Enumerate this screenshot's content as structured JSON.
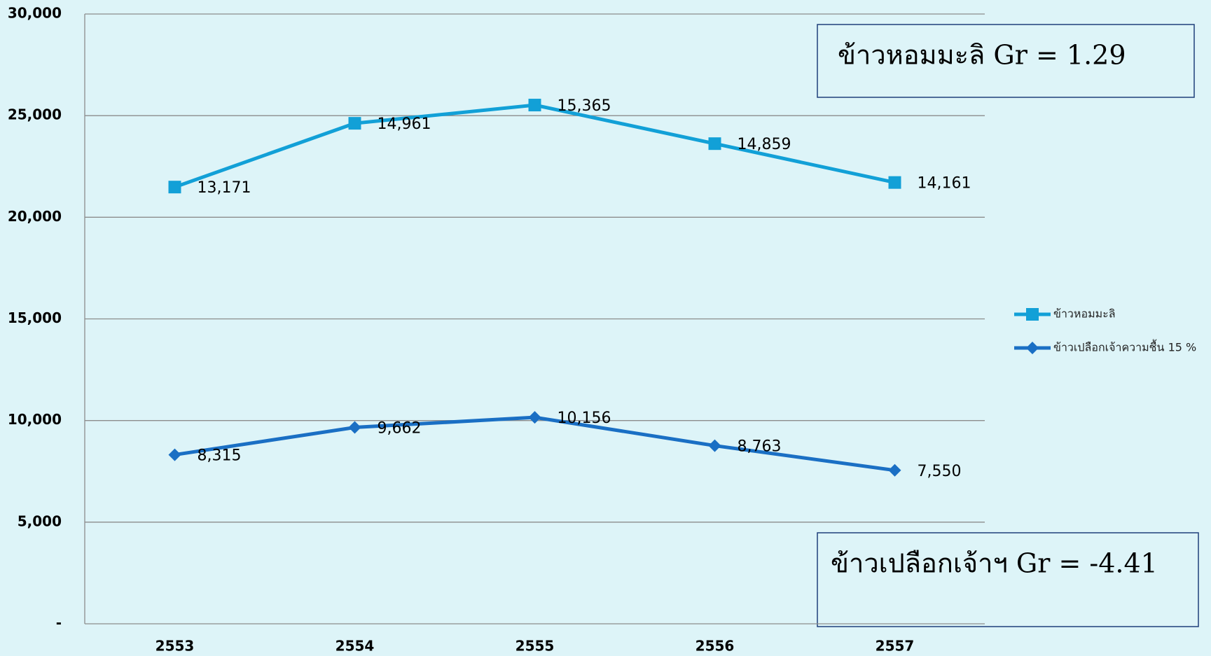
{
  "chart_data": {
    "type": "line",
    "stacked": true,
    "categories": [
      "2553",
      "2554",
      "2555",
      "2556",
      "2557"
    ],
    "series": [
      {
        "name": "ข้าวหอมมะลิ",
        "color": "#12a0d7",
        "marker": "square",
        "values": [
          13171,
          14961,
          15365,
          14859,
          14161
        ],
        "value_labels": [
          "13,171",
          "14,961",
          "15,365",
          "14,859",
          "14,161"
        ]
      },
      {
        "name": "ข้าวเปลือกเจ้าความชื้น 15 %",
        "color": "#1a6fc4",
        "marker": "diamond",
        "values": [
          8315,
          9662,
          10156,
          8763,
          7550
        ],
        "value_labels": [
          "8,315",
          "9,662",
          "10,156",
          "8,763",
          "7,550"
        ]
      }
    ],
    "ylim": [
      0,
      30000
    ],
    "yticks": [
      {
        "value": 0,
        "label": "-"
      },
      {
        "value": 5000,
        "label": "5,000"
      },
      {
        "value": 10000,
        "label": "10,000"
      },
      {
        "value": 15000,
        "label": "15,000"
      },
      {
        "value": 20000,
        "label": "20,000"
      },
      {
        "value": 25000,
        "label": "25,000"
      },
      {
        "value": 30000,
        "label": "30,000"
      }
    ],
    "grid": true,
    "legend": "right",
    "annotations": [
      "ข้าวหอมมะลิ Gr = 1.29",
      "ข้าวเปลือกเจ้าฯ Gr = -4.41"
    ]
  }
}
